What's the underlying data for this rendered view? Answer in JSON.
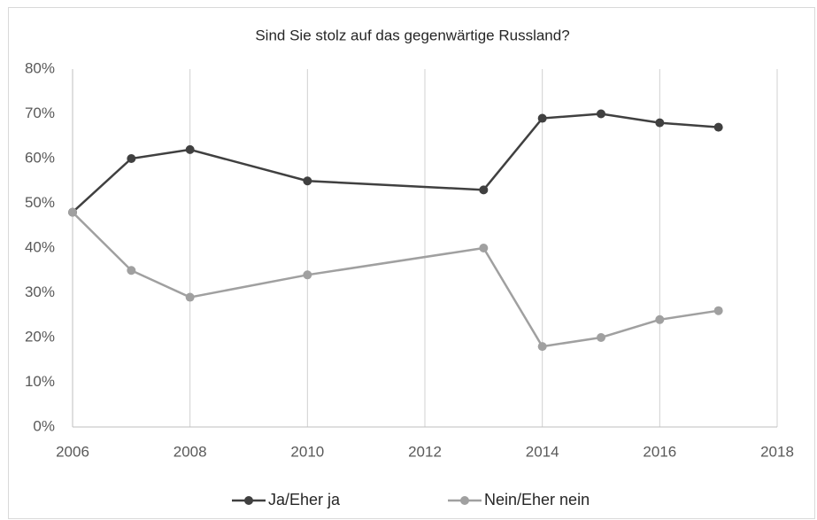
{
  "chart_data": {
    "type": "line",
    "title": "Sind Sie stolz auf das gegenwärtige Russland?",
    "x": [
      2006,
      2007,
      2008,
      2010,
      2013,
      2014,
      2015,
      2016,
      2017
    ],
    "series": [
      {
        "name": "Ja/Eher ja",
        "color": "#404040",
        "values": [
          48,
          60,
          62,
          55,
          53,
          69,
          70,
          68,
          67
        ]
      },
      {
        "name": "Nein/Eher nein",
        "color": "#a0a0a0",
        "values": [
          48,
          35,
          29,
          34,
          40,
          18,
          20,
          24,
          26
        ]
      }
    ],
    "xlim": [
      2006,
      2018
    ],
    "xticks": [
      2006,
      2008,
      2010,
      2012,
      2014,
      2016,
      2018
    ],
    "ylim": [
      0,
      80
    ],
    "yticks": [
      {
        "value": 0,
        "label": "0%"
      },
      {
        "value": 10,
        "label": "10%"
      },
      {
        "value": 20,
        "label": "20%"
      },
      {
        "value": 30,
        "label": "30%"
      },
      {
        "value": 40,
        "label": "40%"
      },
      {
        "value": 50,
        "label": "50%"
      },
      {
        "value": 60,
        "label": "60%"
      },
      {
        "value": 70,
        "label": "70%"
      },
      {
        "value": 80,
        "label": "80%"
      }
    ],
    "grid": "x",
    "legend": "bottom"
  }
}
